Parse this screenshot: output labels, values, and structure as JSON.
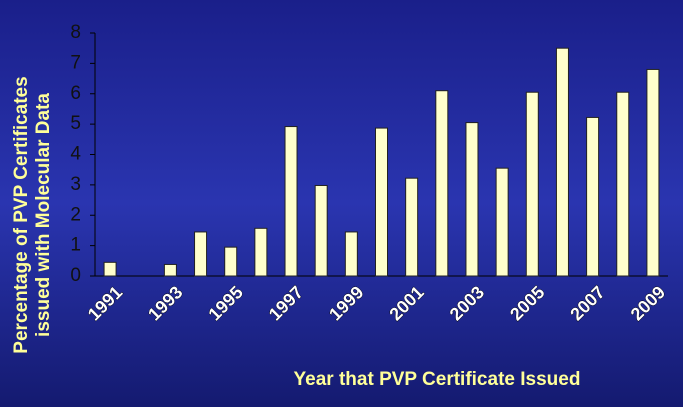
{
  "chart_data": {
    "type": "bar",
    "xlabel": "Year that PVP Certificate Issued",
    "ylabel": [
      "Percentage of PVP Certificates",
      "issued with Molecular Data"
    ],
    "categories": [
      "1991",
      null,
      "1993",
      null,
      "1995",
      null,
      "1997",
      null,
      "1999",
      null,
      "2001",
      null,
      "2003",
      null,
      "2005",
      null,
      "2007",
      null,
      "2009"
    ],
    "values": [
      0.45,
      0,
      0.38,
      1.45,
      0.95,
      1.57,
      4.92,
      2.98,
      1.45,
      4.87,
      3.22,
      6.1,
      5.05,
      3.55,
      6.05,
      7.5,
      5.22,
      6.05,
      6.8
    ],
    "color": "#ffffcc",
    "ylim": [
      0,
      8
    ],
    "yticks": [
      0,
      1,
      2,
      3,
      4,
      5,
      6,
      7,
      8
    ],
    "grid": false
  }
}
